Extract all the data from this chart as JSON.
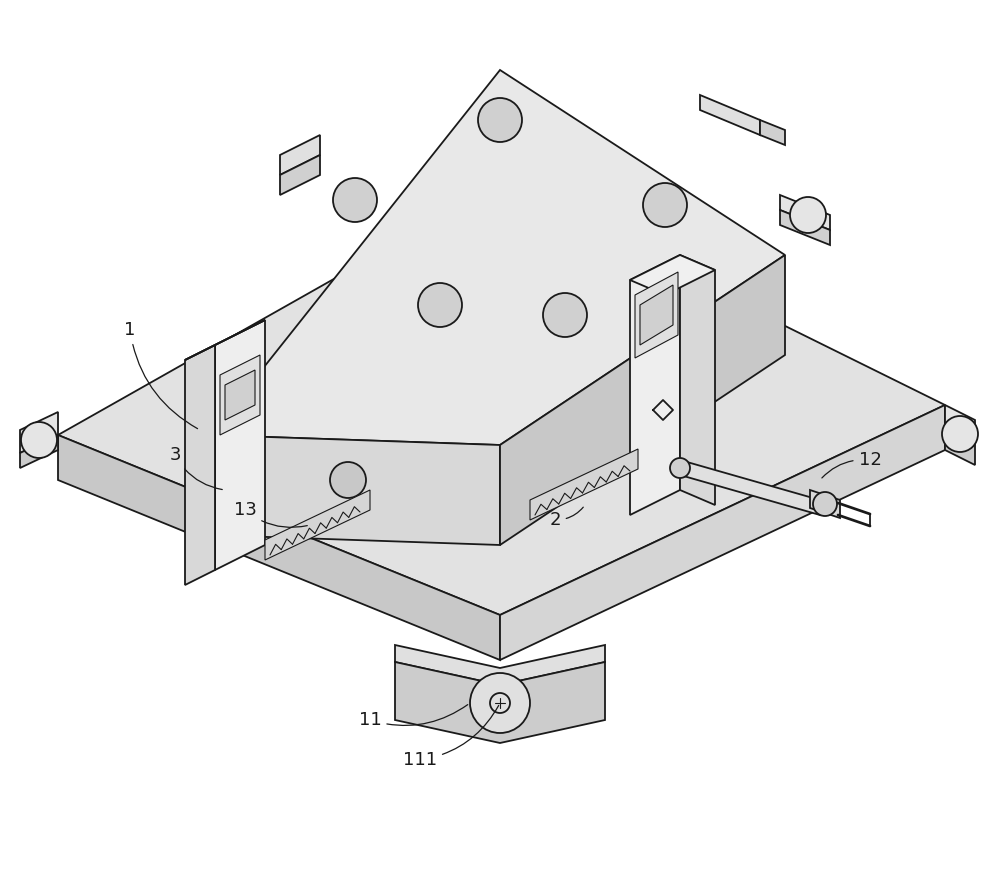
{
  "fig_width": 10.0,
  "fig_height": 8.76,
  "dpi": 100,
  "bg_color": "#ffffff",
  "line_color": "#1a1a1a",
  "line_width": 1.3,
  "thin_line": 0.8,
  "label_fontsize": 13
}
